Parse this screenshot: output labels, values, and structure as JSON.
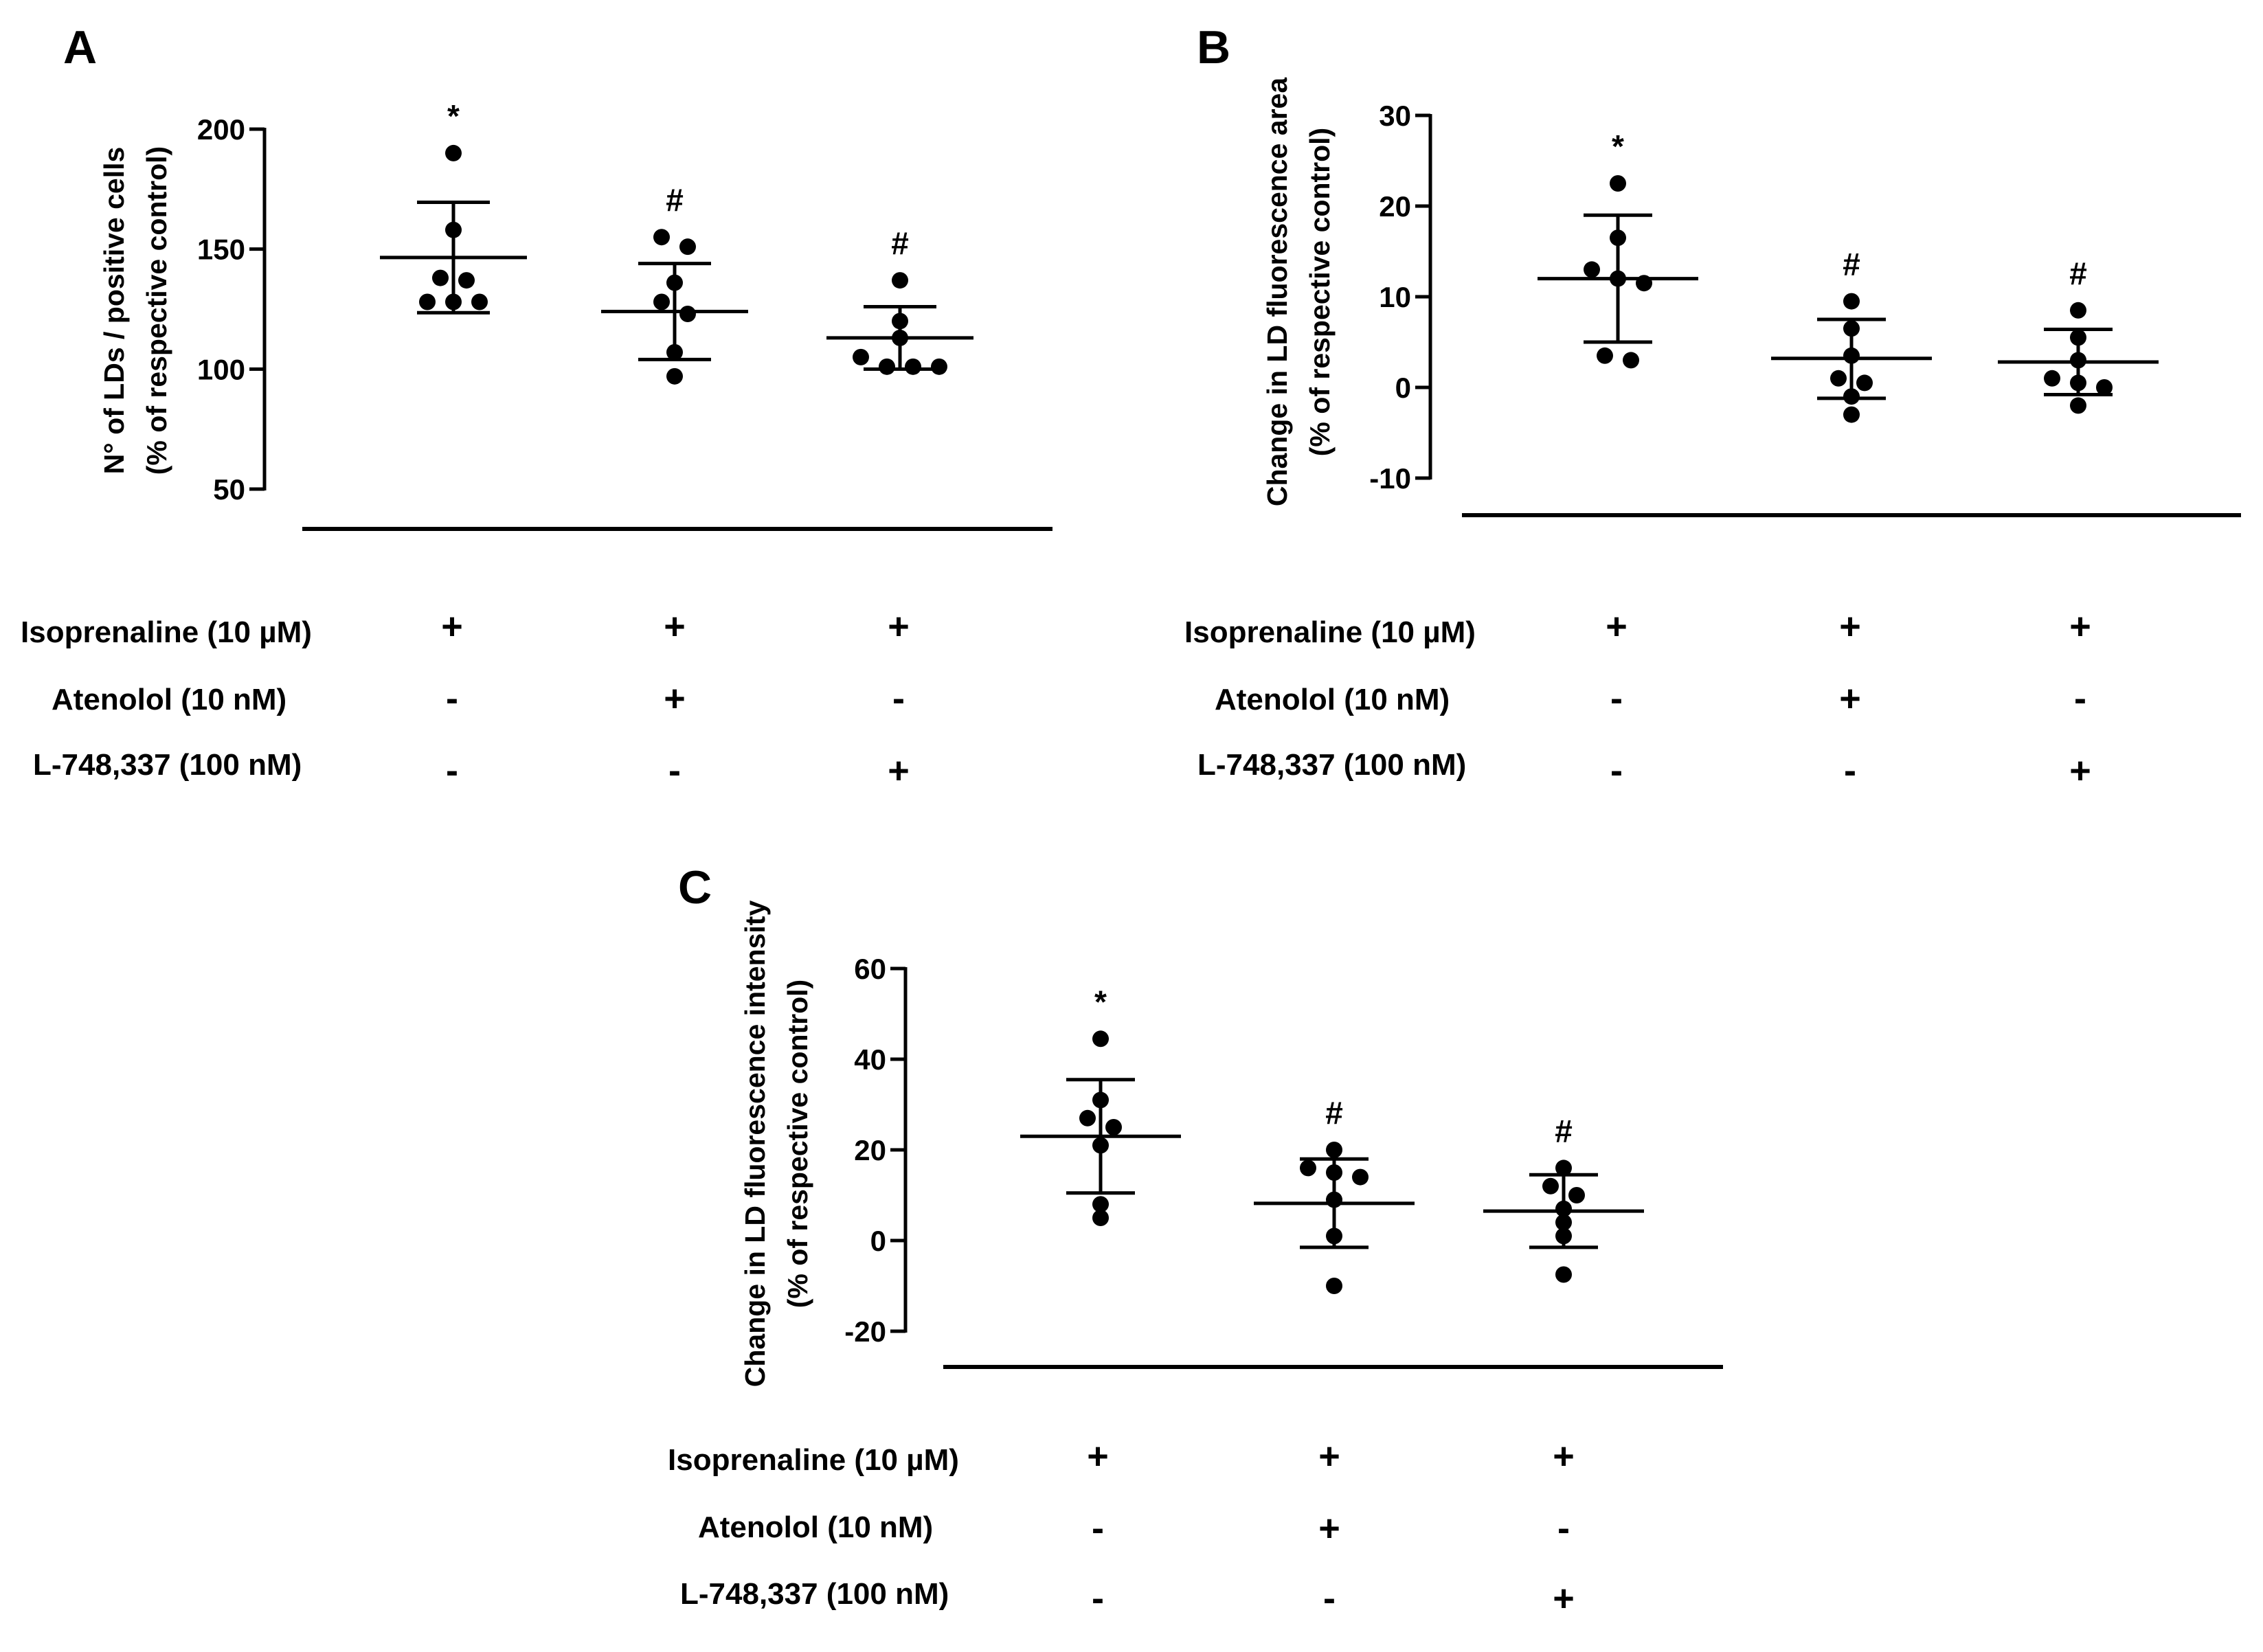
{
  "chart_data": [
    {
      "panel": "A",
      "type": "scatter",
      "ylabel_lines": [
        "N° of LDs / positive cells",
        "(% of respective control)"
      ],
      "ylim": [
        50,
        200
      ],
      "yticks": [
        50,
        100,
        150,
        200
      ],
      "grid": false,
      "groups": [
        {
          "points": [
            190,
            158,
            138,
            137,
            128,
            128,
            128
          ],
          "mean": 146.5,
          "sd_low": 123.5,
          "sd_high": 169.5,
          "sig": "*"
        },
        {
          "points": [
            155,
            151,
            136,
            128,
            123,
            107,
            97
          ],
          "mean": 124,
          "sd_low": 104,
          "sd_high": 144,
          "sig": "#"
        },
        {
          "points": [
            137,
            120,
            113,
            105,
            101,
            101,
            101
          ],
          "mean": 113,
          "sd_low": 100,
          "sd_high": 126,
          "sig": "#"
        }
      ],
      "treatments": [
        {
          "label": "Isoprenaline (10 µM)",
          "signs": [
            "+",
            "+",
            "+"
          ]
        },
        {
          "label": "Atenolol (10 nM)",
          "signs": [
            "-",
            "+",
            "-"
          ]
        },
        {
          "label": "L-748,337 (100 nM)",
          "signs": [
            "-",
            "-",
            "+"
          ]
        }
      ]
    },
    {
      "panel": "B",
      "type": "scatter",
      "ylabel_lines": [
        "Change in LD fluorescence area",
        "(% of respective control)"
      ],
      "ylim": [
        -10,
        30
      ],
      "yticks": [
        -10,
        0,
        10,
        20,
        30
      ],
      "grid": false,
      "groups": [
        {
          "points": [
            22.5,
            16.5,
            13,
            12,
            11.5,
            3.5,
            3
          ],
          "mean": 12,
          "sd_low": 5,
          "sd_high": 19,
          "sig": "*"
        },
        {
          "points": [
            9.5,
            6.5,
            3.5,
            1,
            0.5,
            -1,
            -3
          ],
          "mean": 3.2,
          "sd_low": -1.2,
          "sd_high": 7.5,
          "sig": "#"
        },
        {
          "points": [
            8.5,
            5.5,
            3,
            1,
            0.5,
            0,
            -2
          ],
          "mean": 2.8,
          "sd_low": -0.8,
          "sd_high": 6.4,
          "sig": "#"
        }
      ],
      "treatments": [
        {
          "label": "Isoprenaline (10 µM)",
          "signs": [
            "+",
            "+",
            "+"
          ]
        },
        {
          "label": "Atenolol (10 nM)",
          "signs": [
            "-",
            "+",
            "-"
          ]
        },
        {
          "label": "L-748,337 (100 nM)",
          "signs": [
            "-",
            "-",
            "+"
          ]
        }
      ]
    },
    {
      "panel": "C",
      "type": "scatter",
      "ylabel_lines": [
        "Change in LD fluorescence intensity",
        "(% of respective control)"
      ],
      "ylim": [
        -20,
        60
      ],
      "yticks": [
        -20,
        0,
        20,
        40,
        60
      ],
      "grid": false,
      "groups": [
        {
          "points": [
            44.5,
            31,
            27,
            25,
            21,
            8,
            5
          ],
          "mean": 23,
          "sd_low": 10.5,
          "sd_high": 35.5,
          "sig": "*"
        },
        {
          "points": [
            20,
            16,
            15,
            14,
            9,
            1,
            -10
          ],
          "mean": 8.2,
          "sd_low": -1.5,
          "sd_high": 18,
          "sig": "#"
        },
        {
          "points": [
            16,
            12,
            10,
            7,
            4,
            1,
            -7.5
          ],
          "mean": 6.5,
          "sd_low": -1.5,
          "sd_high": 14.5,
          "sig": "#"
        }
      ],
      "treatments": [
        {
          "label": "Isoprenaline (10 µM)",
          "signs": [
            "+",
            "+",
            "+"
          ]
        },
        {
          "label": "Atenolol (10 nM)",
          "signs": [
            "-",
            "+",
            "-"
          ]
        },
        {
          "label": "L-748,337 (100 nM)",
          "signs": [
            "-",
            "-",
            "+"
          ]
        }
      ]
    }
  ]
}
